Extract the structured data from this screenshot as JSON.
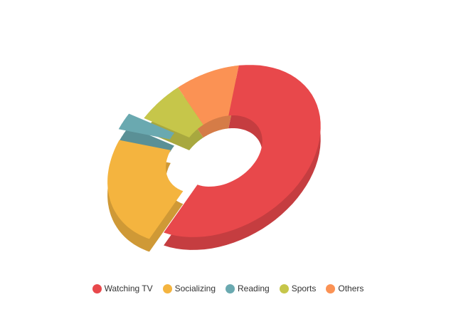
{
  "chart_data": {
    "type": "pie",
    "variant": "3d-donut",
    "categories": [
      "Watching TV",
      "Socializing",
      "Reading",
      "Sports",
      "Others"
    ],
    "values": [
      57,
      23,
      3,
      7,
      10
    ],
    "series": [
      {
        "name": "Watching TV",
        "value": 57,
        "color": "#e8484b"
      },
      {
        "name": "Socializing",
        "value": 23,
        "color": "#f4b43f",
        "exploded": true
      },
      {
        "name": "Reading",
        "value": 3,
        "color": "#6aa9b0",
        "exploded": true
      },
      {
        "name": "Sports",
        "value": 7,
        "color": "#c6c64a"
      },
      {
        "name": "Others",
        "value": 10,
        "color": "#fb9254"
      }
    ],
    "title": "",
    "legend_position": "bottom"
  },
  "legend": {
    "items": [
      {
        "label": "Watching TV",
        "color": "#e8484b"
      },
      {
        "label": "Socializing",
        "color": "#f4b43f"
      },
      {
        "label": "Reading",
        "color": "#6aa9b0"
      },
      {
        "label": "Sports",
        "color": "#c6c64a"
      },
      {
        "label": "Others",
        "color": "#fb9254"
      }
    ]
  }
}
